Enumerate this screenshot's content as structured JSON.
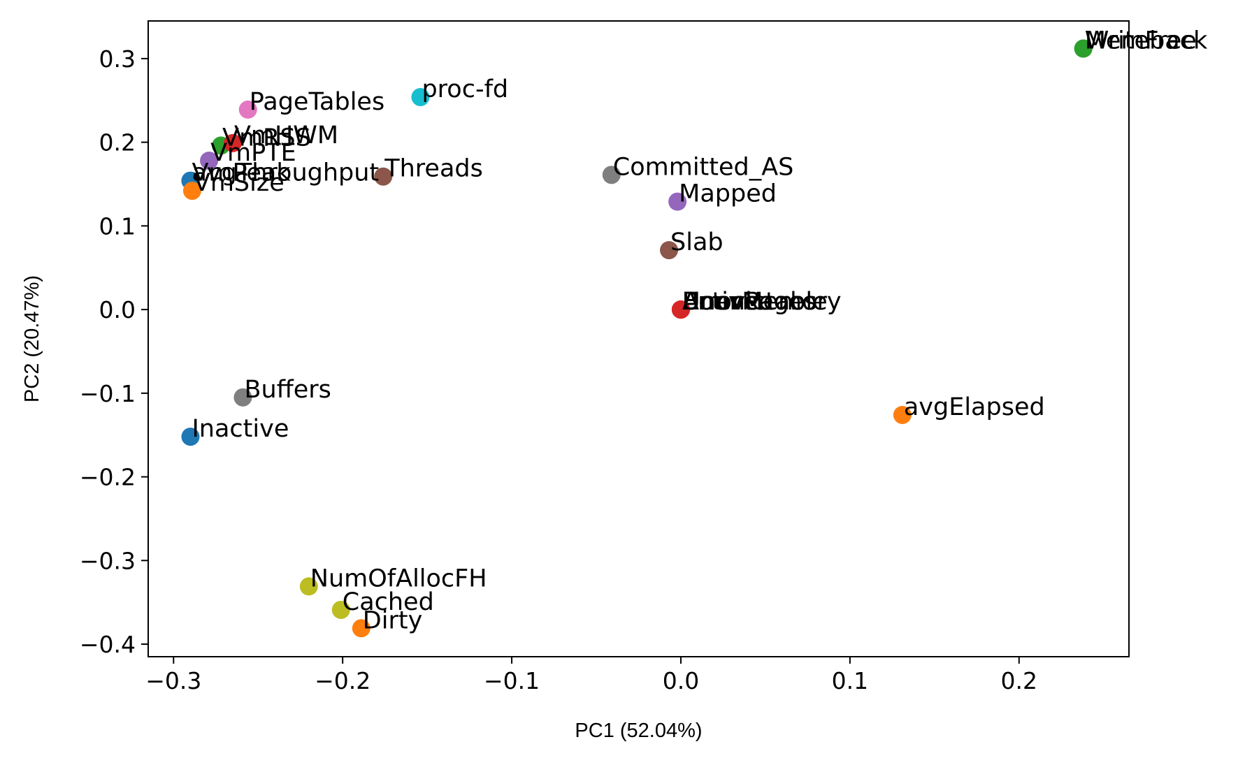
{
  "chart_data": {
    "type": "scatter",
    "xlabel": "PC1 (52.04%)",
    "ylabel": "PC2 (20.47%)",
    "xlim": [
      -0.315,
      0.265
    ],
    "ylim": [
      -0.415,
      0.345
    ],
    "grid": false,
    "xticks": [
      -0.3,
      -0.2,
      -0.1,
      0.0,
      0.1,
      0.2
    ],
    "xtick_labels": [
      "−0.3",
      "−0.2",
      "−0.1",
      "0.0",
      "0.1",
      "0.2"
    ],
    "yticks": [
      -0.4,
      -0.3,
      -0.2,
      -0.1,
      0.0,
      0.1,
      0.2,
      0.3
    ],
    "ytick_labels": [
      "−0.4",
      "−0.3",
      "−0.2",
      "−0.1",
      "0.0",
      "0.1",
      "0.2",
      "0.3"
    ],
    "points": [
      {
        "label": "MemFree",
        "x": 0.238,
        "y": 0.312,
        "color": "#2ca02c"
      },
      {
        "label": "Writeback",
        "x": 0.238,
        "y": 0.312,
        "color": "#2ca02c"
      },
      {
        "label": "proc-fd",
        "x": -0.154,
        "y": 0.254,
        "color": "#17becf"
      },
      {
        "label": "PageTables",
        "x": -0.256,
        "y": 0.239,
        "color": "#e377c2"
      },
      {
        "label": "VmRSS",
        "x": -0.272,
        "y": 0.196,
        "color": "#2ca02c"
      },
      {
        "label": "VmHWM",
        "x": -0.265,
        "y": 0.199,
        "color": "#d62728"
      },
      {
        "label": "VmPTE",
        "x": -0.279,
        "y": 0.178,
        "color": "#9467bd"
      },
      {
        "label": "avgThroughput",
        "x": -0.29,
        "y": 0.154,
        "color": "#1f77b4"
      },
      {
        "label": "VmPeak",
        "x": -0.29,
        "y": 0.154,
        "color": "#1f77b4"
      },
      {
        "label": "VmSize",
        "x": -0.289,
        "y": 0.142,
        "color": "#ff7f0e"
      },
      {
        "label": "Threads",
        "x": -0.176,
        "y": 0.159,
        "color": "#8c564b"
      },
      {
        "label": "Committed_AS",
        "x": -0.041,
        "y": 0.161,
        "color": "#7f7f7f"
      },
      {
        "label": "Mapped",
        "x": -0.002,
        "y": 0.129,
        "color": "#9467bd"
      },
      {
        "label": "Slab",
        "x": -0.007,
        "y": 0.071,
        "color": "#8c564b"
      },
      {
        "label": "Active",
        "x": 0.0,
        "y": 0.0,
        "color": "#d62728"
      },
      {
        "label": "AnonPages",
        "x": 0.0,
        "y": 0.0,
        "color": "#d62728"
      },
      {
        "label": "Bounce",
        "x": 0.0,
        "y": 0.0,
        "color": "#d62728"
      },
      {
        "label": "Unevictable",
        "x": 0.0,
        "y": 0.0,
        "color": "#d62728"
      },
      {
        "label": "ErrorMemory",
        "x": 0.0,
        "y": 0.0,
        "color": "#d62728"
      },
      {
        "label": "Buffers",
        "x": -0.259,
        "y": -0.105,
        "color": "#7f7f7f"
      },
      {
        "label": "Inactive",
        "x": -0.29,
        "y": -0.152,
        "color": "#1f77b4"
      },
      {
        "label": "avgElapsed",
        "x": 0.131,
        "y": -0.126,
        "color": "#ff7f0e"
      },
      {
        "label": "NumOfAllocFH",
        "x": -0.22,
        "y": -0.331,
        "color": "#bcbd22"
      },
      {
        "label": "Cached",
        "x": -0.201,
        "y": -0.359,
        "color": "#bcbd22"
      },
      {
        "label": "Dirty",
        "x": -0.189,
        "y": -0.381,
        "color": "#ff7f0e"
      }
    ]
  }
}
